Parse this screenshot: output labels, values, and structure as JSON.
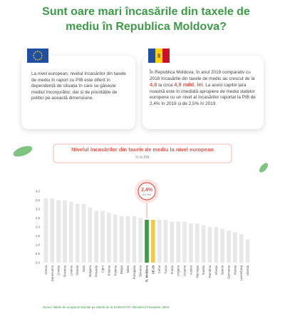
{
  "header": {
    "title": "Sunt oare mari încasările din taxele de mediu în Republica Moldova?"
  },
  "cards": [
    {
      "text": "La nivel european, nivelul încasărilor din taxele de mediu în raport cu PIB este diferit în dependență de situația în care se găsește mediul înconjurător, dar și de prioritățile de politici pe această dimensiune."
    },
    {
      "parts": [
        "În Republica Moldova, în anul 2019 comparativ cu 2018 încasările din taxele de mediu au crescut de la ",
        "4,6",
        " la circa ",
        "4,9 mild. lei",
        ". La acest capitol țara noastră este în imediată apropiere de media statelor europene cu un nivel al încasărilor raportat la PIB de 2,4% în 2018 și de 2,5% în 2019."
      ]
    }
  ],
  "chart_data": {
    "type": "bar",
    "title": "Nivelul încasărilor din taxele de mediu la nivel european",
    "subtitle": "% în PIB",
    "categories": [
      "Grecia",
      "Danemarca",
      "Croatia",
      "Slovenia",
      "Letonia",
      "Olanda",
      "Italia",
      "Bulgaria",
      "Finlanda",
      "Cipru",
      "Estonia",
      "Polonia",
      "Belgia",
      "Malta",
      "Portugalia",
      "Slovacia",
      "R. Moldova",
      "UE-28",
      "Cehia",
      "Turcia",
      "Franța",
      "Ungaria",
      "Lituania",
      "Austria",
      "Norvegia",
      "Suedia",
      "România",
      "Elveția",
      "Spania",
      "Germania",
      "Irlanda",
      "Luxemburg",
      "Islanda"
    ],
    "values": [
      3.6,
      3.6,
      3.5,
      3.5,
      3.4,
      3.3,
      3.3,
      3.1,
      2.9,
      2.9,
      2.8,
      2.7,
      2.6,
      2.6,
      2.6,
      2.5,
      2.4,
      2.4,
      2.4,
      2.4,
      2.3,
      2.3,
      2.3,
      2.2,
      2.2,
      2.1,
      2.0,
      2.0,
      1.9,
      1.8,
      1.7,
      1.6,
      1.3
    ],
    "colors": [
      "#e8e8e8",
      "#e8e8e8",
      "#e8e8e8",
      "#e8e8e8",
      "#e8e8e8",
      "#e8e8e8",
      "#e8e8e8",
      "#e8e8e8",
      "#e8e8e8",
      "#e8e8e8",
      "#e8e8e8",
      "#e8e8e8",
      "#e8e8e8",
      "#e8e8e8",
      "#e8e8e8",
      "#e8e8e8",
      "#3d9b48",
      "#f2c94c",
      "#e8e8e8",
      "#e8e8e8",
      "#e8e8e8",
      "#e8e8e8",
      "#e8e8e8",
      "#e8e8e8",
      "#e8e8e8",
      "#e8e8e8",
      "#e8e8e8",
      "#e8e8e8",
      "#e8e8e8",
      "#e8e8e8",
      "#e8e8e8",
      "#e8e8e8",
      "#e8e8e8"
    ],
    "ylim": [
      0,
      4
    ],
    "yticks": [
      {
        "value": 0,
        "label": "0,0"
      },
      {
        "value": 0.5,
        "label": "0,5"
      },
      {
        "value": 1,
        "label": "1,0"
      },
      {
        "value": 1.5,
        "label": "1,5"
      },
      {
        "value": 2,
        "label": "2,0"
      },
      {
        "value": 2.5,
        "label": "2,5"
      },
      {
        "value": 3,
        "label": "3,0"
      },
      {
        "value": 3.5,
        "label": "3,5"
      },
      {
        "value": 4,
        "label": "4,0"
      }
    ],
    "callout": {
      "text": "2,4%",
      "subtext": "din PIB"
    },
    "source": "Sursa: datele de acoperire bazate pe datele de la EUROSTAT, Ministerul Finanțelor, BNS"
  }
}
